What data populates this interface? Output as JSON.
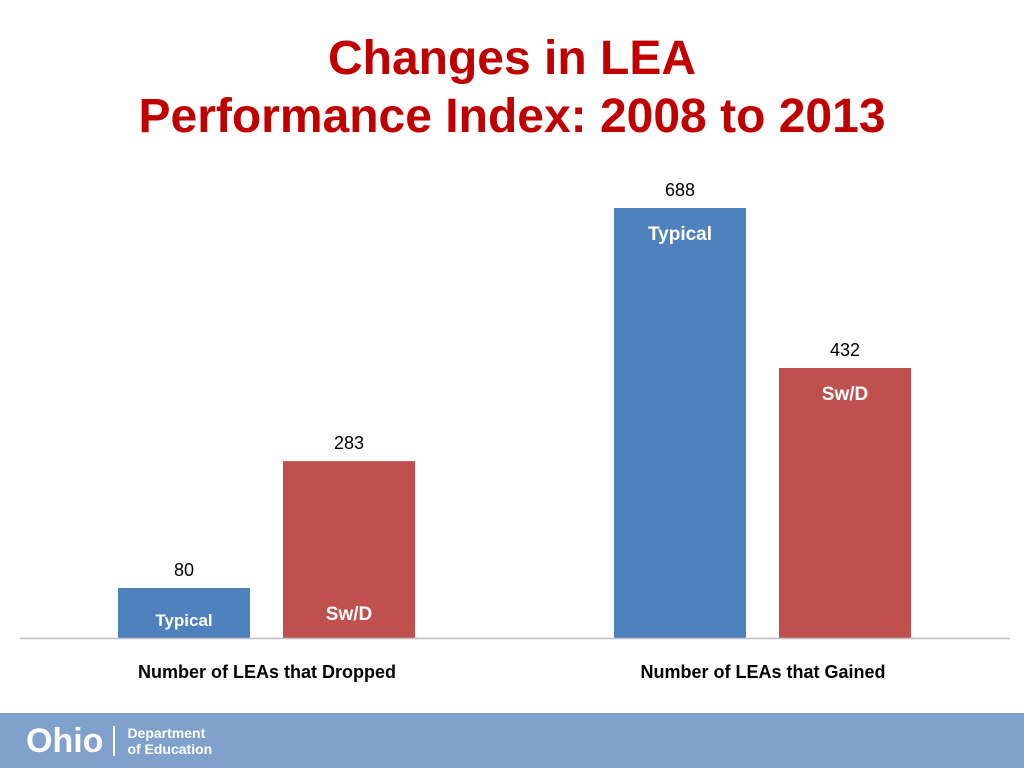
{
  "slide": {
    "title_line1": "Changes in LEA",
    "title_line2": "Performance Index: 2008 to 2013"
  },
  "chart_data": {
    "type": "bar",
    "categories": [
      "Number of LEAs that Dropped",
      "Number of LEAs that Gained"
    ],
    "series": [
      {
        "name": "Typical",
        "values": [
          80,
          688
        ],
        "color": "#4f81bd"
      },
      {
        "name": "Sw/D",
        "values": [
          283,
          432
        ],
        "color": "#c0504d"
      }
    ],
    "ylim": [
      0,
      750
    ],
    "grid": false,
    "legend": "none",
    "data_labels": true,
    "axis_color": "#bfbfbf"
  },
  "footer": {
    "logo_text": "Ohio",
    "dept_line1": "Department",
    "dept_line2": "of Education",
    "background_color": "#7fa1cb"
  }
}
